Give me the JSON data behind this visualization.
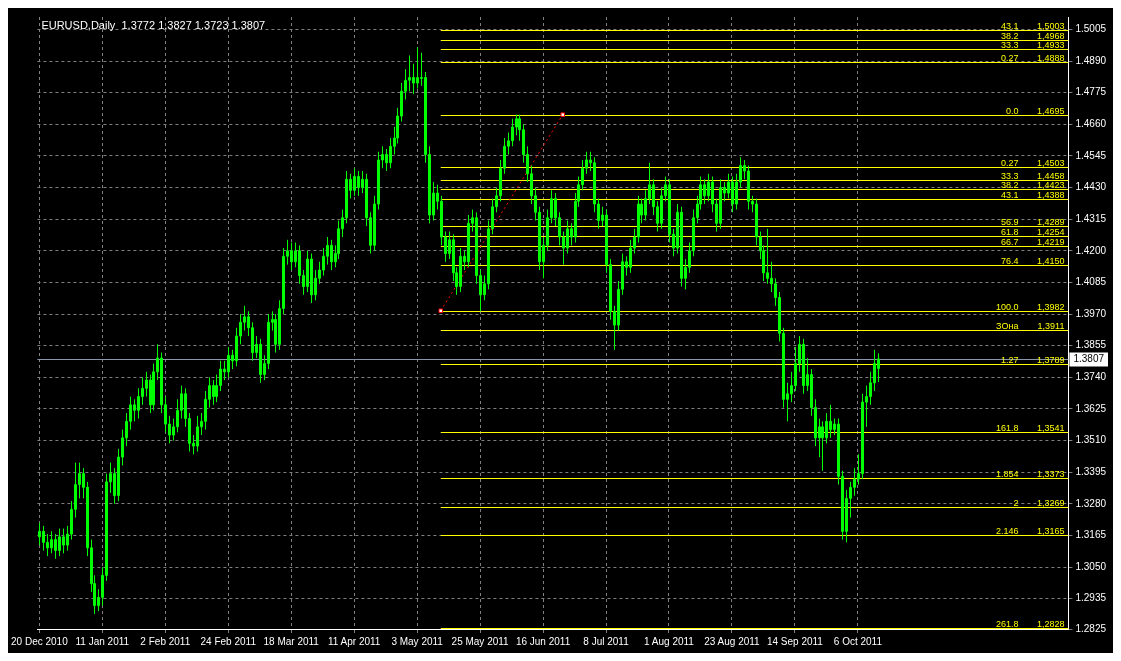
{
  "chart_data": {
    "type": "candlestick",
    "title": "EURUSD,Daily  1.3772 1.3827 1.3723 1.3807",
    "color": "#00ff00",
    "grid": true,
    "categories": [
      "20 Dec 2010",
      null,
      null,
      null,
      null,
      null,
      null,
      null,
      null,
      null,
      null,
      null,
      null,
      null,
      null,
      null,
      "11 Jan 2011",
      null,
      null,
      null,
      null,
      null,
      null,
      null,
      null,
      null,
      null,
      null,
      null,
      null,
      null,
      null,
      "2 Feb 2011",
      null,
      null,
      null,
      null,
      null,
      null,
      null,
      null,
      null,
      null,
      null,
      null,
      null,
      null,
      null,
      "24 Feb 2011",
      null,
      null,
      null,
      null,
      null,
      null,
      null,
      null,
      null,
      null,
      null,
      null,
      null,
      null,
      null,
      "18 Mar 2011",
      null,
      null,
      null,
      null,
      null,
      null,
      null,
      null,
      null,
      null,
      null,
      null,
      null,
      null,
      null,
      "11 Apr 2011",
      null,
      null,
      null,
      null,
      null,
      null,
      null,
      null,
      null,
      null,
      null,
      null,
      null,
      null,
      null,
      "3 May 2011",
      null,
      null,
      null,
      null,
      null,
      null,
      null,
      null,
      null,
      null,
      null,
      null,
      null,
      null,
      null,
      "25 May 2011",
      null,
      null,
      null,
      null,
      null,
      null,
      null,
      null,
      null,
      null,
      null,
      null,
      null,
      null,
      null,
      "16 Jun 2011",
      null,
      null,
      null,
      null,
      null,
      null,
      null,
      null,
      null,
      null,
      null,
      null,
      null,
      null,
      null,
      "8 Jul 2011",
      null,
      null,
      null,
      null,
      null,
      null,
      null,
      null,
      null,
      null,
      null,
      null,
      null,
      null,
      null,
      "1 Aug 2011",
      null,
      null,
      null,
      null,
      null,
      null,
      null,
      null,
      null,
      null,
      null,
      null,
      null,
      null,
      null,
      "23 Aug 2011",
      null,
      null,
      null,
      null,
      null,
      null,
      null,
      null,
      null,
      null,
      null,
      null,
      null,
      null,
      null,
      "14 Sep 2011",
      null,
      null,
      null,
      null,
      null,
      null,
      null,
      null,
      null,
      null,
      null,
      null,
      null,
      null,
      null,
      "6 Oct 2011",
      null,
      null,
      null,
      null,
      null,
      null,
      null,
      null,
      null,
      null,
      null,
      null,
      null,
      null,
      null,
      null,
      null,
      null,
      null,
      null,
      null,
      null,
      null,
      null,
      null,
      null,
      null,
      null,
      null,
      null,
      null,
      null,
      null,
      null,
      null,
      null,
      null,
      null,
      null,
      null,
      null,
      null,
      null,
      null,
      null,
      null,
      null,
      null,
      null,
      null,
      null,
      null,
      null
    ],
    "ohlc": [
      [
        1.316,
        1.321,
        1.313,
        1.318
      ],
      [
        1.318,
        1.32,
        1.311,
        1.314
      ],
      [
        1.314,
        1.317,
        1.309,
        1.312
      ],
      [
        1.312,
        1.318,
        1.31,
        1.315
      ],
      [
        1.315,
        1.317,
        1.308,
        1.311
      ],
      [
        1.311,
        1.319,
        1.309,
        1.316
      ],
      [
        1.316,
        1.319,
        1.31,
        1.313
      ],
      [
        1.313,
        1.32,
        1.311,
        1.317
      ],
      [
        1.317,
        1.329,
        1.315,
        1.326
      ],
      [
        1.326,
        1.343,
        1.323,
        1.335
      ],
      [
        1.335,
        1.343,
        1.33,
        1.339
      ],
      [
        1.339,
        1.341,
        1.33,
        1.334
      ],
      [
        1.334,
        1.336,
        1.309,
        1.312
      ],
      [
        1.312,
        1.315,
        1.296,
        1.299
      ],
      [
        1.299,
        1.302,
        1.288,
        1.291
      ],
      [
        1.291,
        1.297,
        1.289,
        1.294
      ],
      [
        1.294,
        1.305,
        1.291,
        1.302
      ],
      [
        1.302,
        1.339,
        1.3,
        1.336
      ],
      [
        1.336,
        1.343,
        1.332,
        1.339
      ],
      [
        1.339,
        1.341,
        1.328,
        1.331
      ],
      [
        1.331,
        1.348,
        1.329,
        1.345
      ],
      [
        1.345,
        1.355,
        1.342,
        1.352
      ],
      [
        1.352,
        1.361,
        1.349,
        1.358
      ],
      [
        1.358,
        1.367,
        1.355,
        1.364
      ],
      [
        1.364,
        1.366,
        1.358,
        1.362
      ],
      [
        1.362,
        1.37,
        1.359,
        1.367
      ],
      [
        1.367,
        1.374,
        1.364,
        1.37
      ],
      [
        1.37,
        1.376,
        1.367,
        1.373
      ],
      [
        1.373,
        1.375,
        1.361,
        1.364
      ],
      [
        1.364,
        1.379,
        1.362,
        1.376
      ],
      [
        1.376,
        1.386,
        1.373,
        1.381
      ],
      [
        1.381,
        1.383,
        1.361,
        1.364
      ],
      [
        1.364,
        1.367,
        1.354,
        1.357
      ],
      [
        1.357,
        1.36,
        1.35,
        1.353
      ],
      [
        1.353,
        1.359,
        1.351,
        1.356
      ],
      [
        1.356,
        1.366,
        1.354,
        1.362
      ],
      [
        1.362,
        1.371,
        1.359,
        1.368
      ],
      [
        1.368,
        1.37,
        1.356,
        1.359
      ],
      [
        1.359,
        1.361,
        1.347,
        1.35
      ],
      [
        1.35,
        1.353,
        1.346,
        1.349
      ],
      [
        1.349,
        1.36,
        1.347,
        1.356
      ],
      [
        1.356,
        1.361,
        1.353,
        1.358
      ],
      [
        1.358,
        1.369,
        1.355,
        1.366
      ],
      [
        1.366,
        1.374,
        1.363,
        1.371
      ],
      [
        1.371,
        1.373,
        1.364,
        1.367
      ],
      [
        1.367,
        1.375,
        1.365,
        1.371
      ],
      [
        1.371,
        1.38,
        1.369,
        1.377
      ],
      [
        1.377,
        1.38,
        1.373,
        1.376
      ],
      [
        1.376,
        1.385,
        1.374,
        1.382
      ],
      [
        1.382,
        1.384,
        1.377,
        1.38
      ],
      [
        1.38,
        1.392,
        1.378,
        1.389
      ],
      [
        1.389,
        1.397,
        1.386,
        1.394
      ],
      [
        1.394,
        1.4,
        1.391,
        1.396
      ],
      [
        1.396,
        1.398,
        1.389,
        1.392
      ],
      [
        1.392,
        1.394,
        1.38,
        1.383
      ],
      [
        1.383,
        1.389,
        1.381,
        1.386
      ],
      [
        1.386,
        1.388,
        1.372,
        1.375
      ],
      [
        1.375,
        1.382,
        1.373,
        1.379
      ],
      [
        1.379,
        1.397,
        1.377,
        1.394
      ],
      [
        1.394,
        1.398,
        1.391,
        1.395
      ],
      [
        1.395,
        1.397,
        1.383,
        1.386
      ],
      [
        1.386,
        1.402,
        1.384,
        1.399
      ],
      [
        1.399,
        1.421,
        1.397,
        1.418
      ],
      [
        1.418,
        1.424,
        1.415,
        1.42
      ],
      [
        1.42,
        1.423,
        1.413,
        1.416
      ],
      [
        1.416,
        1.423,
        1.414,
        1.42
      ],
      [
        1.42,
        1.422,
        1.408,
        1.411
      ],
      [
        1.411,
        1.413,
        1.404,
        1.407
      ],
      [
        1.407,
        1.42,
        1.405,
        1.417
      ],
      [
        1.417,
        1.419,
        1.401,
        1.404
      ],
      [
        1.404,
        1.413,
        1.402,
        1.41
      ],
      [
        1.41,
        1.416,
        1.408,
        1.413
      ],
      [
        1.413,
        1.421,
        1.411,
        1.418
      ],
      [
        1.418,
        1.425,
        1.415,
        1.422
      ],
      [
        1.422,
        1.424,
        1.413,
        1.416
      ],
      [
        1.416,
        1.422,
        1.414,
        1.419
      ],
      [
        1.419,
        1.431,
        1.417,
        1.428
      ],
      [
        1.428,
        1.435,
        1.425,
        1.432
      ],
      [
        1.432,
        1.449,
        1.43,
        1.446
      ],
      [
        1.446,
        1.448,
        1.439,
        1.442
      ],
      [
        1.442,
        1.45,
        1.44,
        1.447
      ],
      [
        1.447,
        1.449,
        1.44,
        1.443
      ],
      [
        1.443,
        1.449,
        1.441,
        1.446
      ],
      [
        1.446,
        1.448,
        1.429,
        1.432
      ],
      [
        1.432,
        1.434,
        1.419,
        1.422
      ],
      [
        1.422,
        1.44,
        1.42,
        1.437
      ],
      [
        1.437,
        1.456,
        1.435,
        1.453
      ],
      [
        1.453,
        1.458,
        1.45,
        1.455
      ],
      [
        1.455,
        1.457,
        1.449,
        1.452
      ],
      [
        1.452,
        1.461,
        1.45,
        1.458
      ],
      [
        1.458,
        1.465,
        1.455,
        1.461
      ],
      [
        1.461,
        1.472,
        1.459,
        1.469
      ],
      [
        1.469,
        1.481,
        1.467,
        1.478
      ],
      [
        1.478,
        1.486,
        1.475,
        1.482
      ],
      [
        1.482,
        1.491,
        1.478,
        1.483
      ],
      [
        1.483,
        1.488,
        1.477,
        1.481
      ],
      [
        1.481,
        1.494,
        1.479,
        1.483
      ],
      [
        1.483,
        1.492,
        1.48,
        1.483
      ],
      [
        1.483,
        1.485,
        1.452,
        1.455
      ],
      [
        1.455,
        1.458,
        1.43,
        1.433
      ],
      [
        1.433,
        1.445,
        1.431,
        1.441
      ],
      [
        1.441,
        1.444,
        1.435,
        1.438
      ],
      [
        1.438,
        1.44,
        1.422,
        1.425
      ],
      [
        1.425,
        1.427,
        1.416,
        1.419
      ],
      [
        1.419,
        1.427,
        1.417,
        1.424
      ],
      [
        1.424,
        1.426,
        1.409,
        1.412
      ],
      [
        1.412,
        1.414,
        1.404,
        1.407
      ],
      [
        1.407,
        1.421,
        1.405,
        1.418
      ],
      [
        1.418,
        1.42,
        1.413,
        1.416
      ],
      [
        1.416,
        1.433,
        1.414,
        1.43
      ],
      [
        1.43,
        1.435,
        1.427,
        1.432
      ],
      [
        1.432,
        1.434,
        1.408,
        1.411
      ],
      [
        1.411,
        1.413,
        1.398,
        1.404
      ],
      [
        1.404,
        1.411,
        1.402,
        1.408
      ],
      [
        1.408,
        1.431,
        1.406,
        1.428
      ],
      [
        1.428,
        1.439,
        1.426,
        1.436
      ],
      [
        1.436,
        1.443,
        1.434,
        1.44
      ],
      [
        1.44,
        1.453,
        1.438,
        1.45
      ],
      [
        1.45,
        1.461,
        1.448,
        1.458
      ],
      [
        1.458,
        1.463,
        1.455,
        1.46
      ],
      [
        1.46,
        1.468,
        1.458,
        1.465
      ],
      [
        1.465,
        1.4695,
        1.462,
        1.468
      ],
      [
        1.468,
        1.4695,
        1.46,
        1.464
      ],
      [
        1.464,
        1.466,
        1.452,
        1.455
      ],
      [
        1.455,
        1.458,
        1.445,
        1.448
      ],
      [
        1.448,
        1.451,
        1.437,
        1.44
      ],
      [
        1.44,
        1.443,
        1.431,
        1.434
      ],
      [
        1.434,
        1.436,
        1.413,
        1.416
      ],
      [
        1.416,
        1.425,
        1.41,
        1.422
      ],
      [
        1.422,
        1.435,
        1.42,
        1.432
      ],
      [
        1.432,
        1.442,
        1.43,
        1.439
      ],
      [
        1.439,
        1.441,
        1.429,
        1.432
      ],
      [
        1.432,
        1.434,
        1.422,
        1.425
      ],
      [
        1.425,
        1.427,
        1.415,
        1.421
      ],
      [
        1.421,
        1.431,
        1.419,
        1.428
      ],
      [
        1.428,
        1.43,
        1.422,
        1.425
      ],
      [
        1.425,
        1.441,
        1.423,
        1.438
      ],
      [
        1.438,
        1.447,
        1.436,
        1.444
      ],
      [
        1.444,
        1.453,
        1.442,
        1.45
      ],
      [
        1.45,
        1.456,
        1.448,
        1.453
      ],
      [
        1.453,
        1.456,
        1.449,
        1.452
      ],
      [
        1.452,
        1.454,
        1.434,
        1.437
      ],
      [
        1.437,
        1.439,
        1.428,
        1.431
      ],
      [
        1.431,
        1.436,
        1.429,
        1.433
      ],
      [
        1.433,
        1.435,
        1.412,
        1.415
      ],
      [
        1.415,
        1.417,
        1.395,
        1.398
      ],
      [
        1.398,
        1.4,
        1.384,
        1.393
      ],
      [
        1.393,
        1.409,
        1.391,
        1.406
      ],
      [
        1.406,
        1.419,
        1.404,
        1.416
      ],
      [
        1.416,
        1.418,
        1.411,
        1.414
      ],
      [
        1.414,
        1.424,
        1.412,
        1.421
      ],
      [
        1.421,
        1.428,
        1.419,
        1.425
      ],
      [
        1.425,
        1.44,
        1.423,
        1.437
      ],
      [
        1.437,
        1.439,
        1.43,
        1.433
      ],
      [
        1.433,
        1.442,
        1.431,
        1.439
      ],
      [
        1.439,
        1.452,
        1.437,
        1.444
      ],
      [
        1.444,
        1.446,
        1.433,
        1.436
      ],
      [
        1.436,
        1.438,
        1.427,
        1.43
      ],
      [
        1.43,
        1.443,
        1.428,
        1.44
      ],
      [
        1.44,
        1.447,
        1.438,
        1.444
      ],
      [
        1.444,
        1.446,
        1.423,
        1.426
      ],
      [
        1.426,
        1.428,
        1.418,
        1.421
      ],
      [
        1.421,
        1.437,
        1.419,
        1.434
      ],
      [
        1.434,
        1.436,
        1.407,
        1.41
      ],
      [
        1.41,
        1.417,
        1.406,
        1.414
      ],
      [
        1.414,
        1.423,
        1.412,
        1.42
      ],
      [
        1.42,
        1.435,
        1.418,
        1.432
      ],
      [
        1.432,
        1.44,
        1.43,
        1.437
      ],
      [
        1.437,
        1.447,
        1.435,
        1.444
      ],
      [
        1.444,
        1.446,
        1.437,
        1.44
      ],
      [
        1.44,
        1.448,
        1.438,
        1.445
      ],
      [
        1.445,
        1.447,
        1.434,
        1.437
      ],
      [
        1.437,
        1.439,
        1.427,
        1.43
      ],
      [
        1.43,
        1.446,
        1.428,
        1.443
      ],
      [
        1.443,
        1.445,
        1.438,
        1.441
      ],
      [
        1.441,
        1.448,
        1.439,
        1.445
      ],
      [
        1.445,
        1.447,
        1.434,
        1.437
      ],
      [
        1.437,
        1.448,
        1.435,
        1.445
      ],
      [
        1.445,
        1.454,
        1.443,
        1.451
      ],
      [
        1.451,
        1.453,
        1.446,
        1.449
      ],
      [
        1.449,
        1.451,
        1.435,
        1.438
      ],
      [
        1.438,
        1.44,
        1.434,
        1.437
      ],
      [
        1.437,
        1.439,
        1.422,
        1.425
      ],
      [
        1.425,
        1.427,
        1.417,
        1.42
      ],
      [
        1.42,
        1.422,
        1.409,
        1.412
      ],
      [
        1.412,
        1.428,
        1.408,
        1.41
      ],
      [
        1.41,
        1.416,
        1.405,
        1.408
      ],
      [
        1.408,
        1.41,
        1.4,
        1.403
      ],
      [
        1.403,
        1.405,
        1.387,
        1.39
      ],
      [
        1.39,
        1.392,
        1.363,
        1.366
      ],
      [
        1.366,
        1.372,
        1.358,
        1.368
      ],
      [
        1.368,
        1.376,
        1.365,
        1.371
      ],
      [
        1.371,
        1.385,
        1.369,
        1.379
      ],
      [
        1.379,
        1.389,
        1.376,
        1.386
      ],
      [
        1.386,
        1.388,
        1.368,
        1.371
      ],
      [
        1.371,
        1.381,
        1.369,
        1.375
      ],
      [
        1.375,
        1.377,
        1.36,
        1.363
      ],
      [
        1.363,
        1.366,
        1.349,
        1.352
      ],
      [
        1.352,
        1.359,
        1.345,
        1.356
      ],
      [
        1.356,
        1.358,
        1.34,
        1.352
      ],
      [
        1.352,
        1.361,
        1.35,
        1.358
      ],
      [
        1.358,
        1.364,
        1.352,
        1.355
      ],
      [
        1.355,
        1.359,
        1.353,
        1.357
      ],
      [
        1.357,
        1.359,
        1.335,
        1.338
      ],
      [
        1.338,
        1.34,
        1.315,
        1.318
      ],
      [
        1.318,
        1.333,
        1.314,
        1.33
      ],
      [
        1.33,
        1.336,
        1.323,
        1.334
      ],
      [
        1.334,
        1.341,
        1.331,
        1.337
      ],
      [
        1.337,
        1.346,
        1.335,
        1.339
      ],
      [
        1.339,
        1.368,
        1.337,
        1.365
      ],
      [
        1.365,
        1.371,
        1.356,
        1.367
      ],
      [
        1.367,
        1.376,
        1.364,
        1.372
      ],
      [
        1.372,
        1.384,
        1.369,
        1.379
      ],
      [
        1.3772,
        1.3827,
        1.3723,
        1.3807
      ],
      null,
      null,
      null,
      null,
      null,
      null,
      null,
      null,
      null,
      null,
      null,
      null,
      null,
      null,
      null,
      null,
      null,
      null,
      null,
      null,
      null,
      null,
      null,
      null,
      null,
      null,
      null,
      null,
      null,
      null,
      null,
      null,
      null,
      null,
      null,
      null,
      null,
      null,
      null,
      null,
      null,
      null,
      null,
      null,
      null,
      null,
      null,
      null
    ],
    "series": [
      {
        "type": "line",
        "color": "#ff0000",
        "line_style": "dotted",
        "marker": "square",
        "values": [
          null,
          null,
          null,
          null,
          null,
          null,
          null,
          null,
          null,
          null,
          null,
          null,
          null,
          null,
          null,
          null,
          null,
          null,
          null,
          null,
          null,
          null,
          null,
          null,
          null,
          null,
          null,
          null,
          null,
          null,
          null,
          null,
          null,
          null,
          null,
          null,
          null,
          null,
          null,
          null,
          null,
          null,
          null,
          null,
          null,
          null,
          null,
          null,
          null,
          null,
          null,
          null,
          null,
          null,
          null,
          null,
          null,
          null,
          null,
          null,
          null,
          null,
          null,
          null,
          null,
          null,
          null,
          null,
          null,
          null,
          null,
          null,
          null,
          null,
          null,
          null,
          null,
          null,
          null,
          null,
          null,
          null,
          null,
          null,
          null,
          null,
          null,
          null,
          null,
          null,
          null,
          null,
          null,
          null,
          null,
          null,
          null,
          null,
          null,
          null,
          null,
          null,
          1.3982,
          null,
          null,
          null,
          null,
          null,
          null,
          null,
          null,
          null,
          null,
          null,
          null,
          null,
          null,
          null,
          null,
          null,
          null,
          null,
          null,
          null,
          null,
          null,
          null,
          null,
          null,
          null,
          null,
          null,
          null,
          1.4695,
          null,
          null,
          null,
          null,
          null,
          null,
          null,
          null,
          null,
          null,
          null,
          null,
          null,
          null,
          null,
          null,
          null,
          null,
          null,
          null,
          null,
          null,
          null,
          null,
          null,
          null,
          null,
          null,
          null,
          null,
          null,
          null,
          null,
          null,
          null,
          null,
          null,
          null,
          null,
          null,
          null,
          null,
          null,
          null,
          null,
          null,
          null,
          null,
          null,
          null,
          null,
          null,
          null,
          null,
          null,
          null,
          null,
          null,
          null,
          null,
          null,
          null,
          null,
          null,
          null,
          null,
          null,
          null,
          null,
          null,
          null,
          null,
          null,
          null,
          null,
          null,
          null,
          null,
          null,
          null,
          null,
          null,
          null,
          null,
          null,
          null,
          null,
          null,
          null,
          null,
          null,
          null,
          null,
          null,
          null,
          null,
          null,
          null,
          null,
          null,
          null,
          null,
          null,
          null,
          null,
          null,
          null,
          null,
          null,
          null,
          null,
          null,
          null,
          null,
          null,
          null,
          null,
          null,
          null,
          null,
          null,
          null,
          null,
          null,
          null,
          null,
          null,
          null
        ]
      }
    ],
    "ylim": [
      1.2825,
      1.505
    ],
    "yticks": [
      1.2825,
      1.2935,
      {
        "value": 1.305,
        "label": "1.3050"
      },
      1.3165,
      {
        "value": 1.328,
        "label": "1.3280"
      },
      1.3395,
      {
        "value": 1.351,
        "label": "1.3510"
      },
      1.3625,
      {
        "value": 1.374,
        "label": "1.3740"
      },
      1.3855,
      {
        "value": 1.397,
        "label": "1.3970"
      },
      1.4085,
      {
        "value": 1.42,
        "label": "1.4200"
      },
      1.4315,
      {
        "value": 1.443,
        "label": "1.4430"
      },
      1.4545,
      {
        "value": 1.466,
        "label": "1.4660"
      },
      1.4775,
      {
        "value": 1.489,
        "label": "1.4890"
      },
      1.5005
    ],
    "ref_lines": [
      {
        "axis": "y",
        "value": 1.5003,
        "color": "#ffff00"
      },
      {
        "axis": "y",
        "value": 1.4968,
        "color": "#ffff00"
      },
      {
        "axis": "y",
        "value": 1.4933,
        "color": "#ffff00"
      },
      {
        "axis": "y",
        "value": 1.4888,
        "color": "#ffff00"
      },
      {
        "axis": "y",
        "value": 1.4695,
        "color": "#ffff00"
      },
      {
        "axis": "y",
        "value": 1.4503,
        "color": "#ffff00"
      },
      {
        "axis": "y",
        "value": 1.4458,
        "color": "#ffff00"
      },
      {
        "axis": "y",
        "value": 1.4423,
        "color": "#ffff00"
      },
      {
        "axis": "y",
        "value": 1.4388,
        "color": "#ffff00"
      },
      {
        "axis": "y",
        "value": 1.4289,
        "color": "#ffff00"
      },
      {
        "axis": "y",
        "value": 1.4254,
        "color": "#ffff00"
      },
      {
        "axis": "y",
        "value": 1.4219,
        "color": "#ffff00"
      },
      {
        "axis": "y",
        "value": 1.415,
        "color": "#ffff00"
      },
      {
        "axis": "y",
        "value": 1.3982,
        "color": "#ffff00"
      },
      {
        "axis": "y",
        "value": 1.3911,
        "color": "#ffff00"
      },
      {
        "axis": "y",
        "value": 1.3789,
        "color": "#ffff00"
      },
      {
        "axis": "y",
        "value": 1.3541,
        "color": "#ffff00"
      },
      {
        "axis": "y",
        "value": 1.3373,
        "color": "#ffff00"
      },
      {
        "axis": "y",
        "value": 1.3269,
        "color": "#ffff00"
      },
      {
        "axis": "y",
        "value": 1.3165,
        "color": "#ffff00"
      },
      {
        "axis": "y",
        "value": 1.2828,
        "color": "#ffff00"
      },
      {
        "axis": "y",
        "value": 1.3807,
        "label": "1.3807",
        "color": "#8896a8"
      }
    ],
    "annotations": [
      {
        "text": "43.1",
        "y": 1.5003
      },
      {
        "text": "1,5003",
        "y": 1.5003
      },
      {
        "text": "38.2",
        "y": 1.4968
      },
      {
        "text": "1,4968",
        "y": 1.4968
      },
      {
        "text": "33.3",
        "y": 1.4933
      },
      {
        "text": "1,4933",
        "y": 1.4933
      },
      {
        "text": "0.27",
        "y": 1.4888
      },
      {
        "text": "1,4888",
        "y": 1.4888
      },
      {
        "text": "0.0",
        "y": 1.4695
      },
      {
        "text": "1,4695",
        "y": 1.4695
      },
      {
        "text": "0.27",
        "y": 1.4503
      },
      {
        "text": "1,4503",
        "y": 1.4503
      },
      {
        "text": "33.3",
        "y": 1.4458
      },
      {
        "text": "1,4458",
        "y": 1.4458
      },
      {
        "text": "38.2",
        "y": 1.4423
      },
      {
        "text": "1,4423",
        "y": 1.4423
      },
      {
        "text": "43.1",
        "y": 1.4388
      },
      {
        "text": "1,4388",
        "y": 1.4388
      },
      {
        "text": "56.9",
        "y": 1.4289
      },
      {
        "text": "1,4289",
        "y": 1.4289
      },
      {
        "text": "61.8",
        "y": 1.4254
      },
      {
        "text": "1,4254",
        "y": 1.4254
      },
      {
        "text": "66.7",
        "y": 1.4219
      },
      {
        "text": "1,4219",
        "y": 1.4219
      },
      {
        "text": "76.4",
        "y": 1.415
      },
      {
        "text": "1,4150",
        "y": 1.415
      },
      {
        "text": "100.0",
        "y": 1.3982
      },
      {
        "text": "1,3982",
        "y": 1.3982
      },
      {
        "text": "ЗОна",
        "y": 1.3911
      },
      {
        "text": "1,3911",
        "y": 1.3911
      },
      {
        "text": "1.27",
        "y": 1.3789
      },
      {
        "text": "1,3789",
        "y": 1.3789
      },
      {
        "text": "161.8",
        "y": 1.3541
      },
      {
        "text": "1,3541",
        "y": 1.3541
      },
      {
        "text": "1.854",
        "y": 1.3373
      },
      {
        "text": "1,3373",
        "y": 1.3373
      },
      {
        "text": "2",
        "y": 1.3269
      },
      {
        "text": "1,3269",
        "y": 1.3269
      },
      {
        "text": "2.146",
        "y": 1.3165
      },
      {
        "text": "1,3165",
        "y": 1.3165
      },
      {
        "text": "261.8",
        "y": 1.2828
      },
      {
        "text": "1,2828",
        "y": 1.2828
      }
    ]
  }
}
